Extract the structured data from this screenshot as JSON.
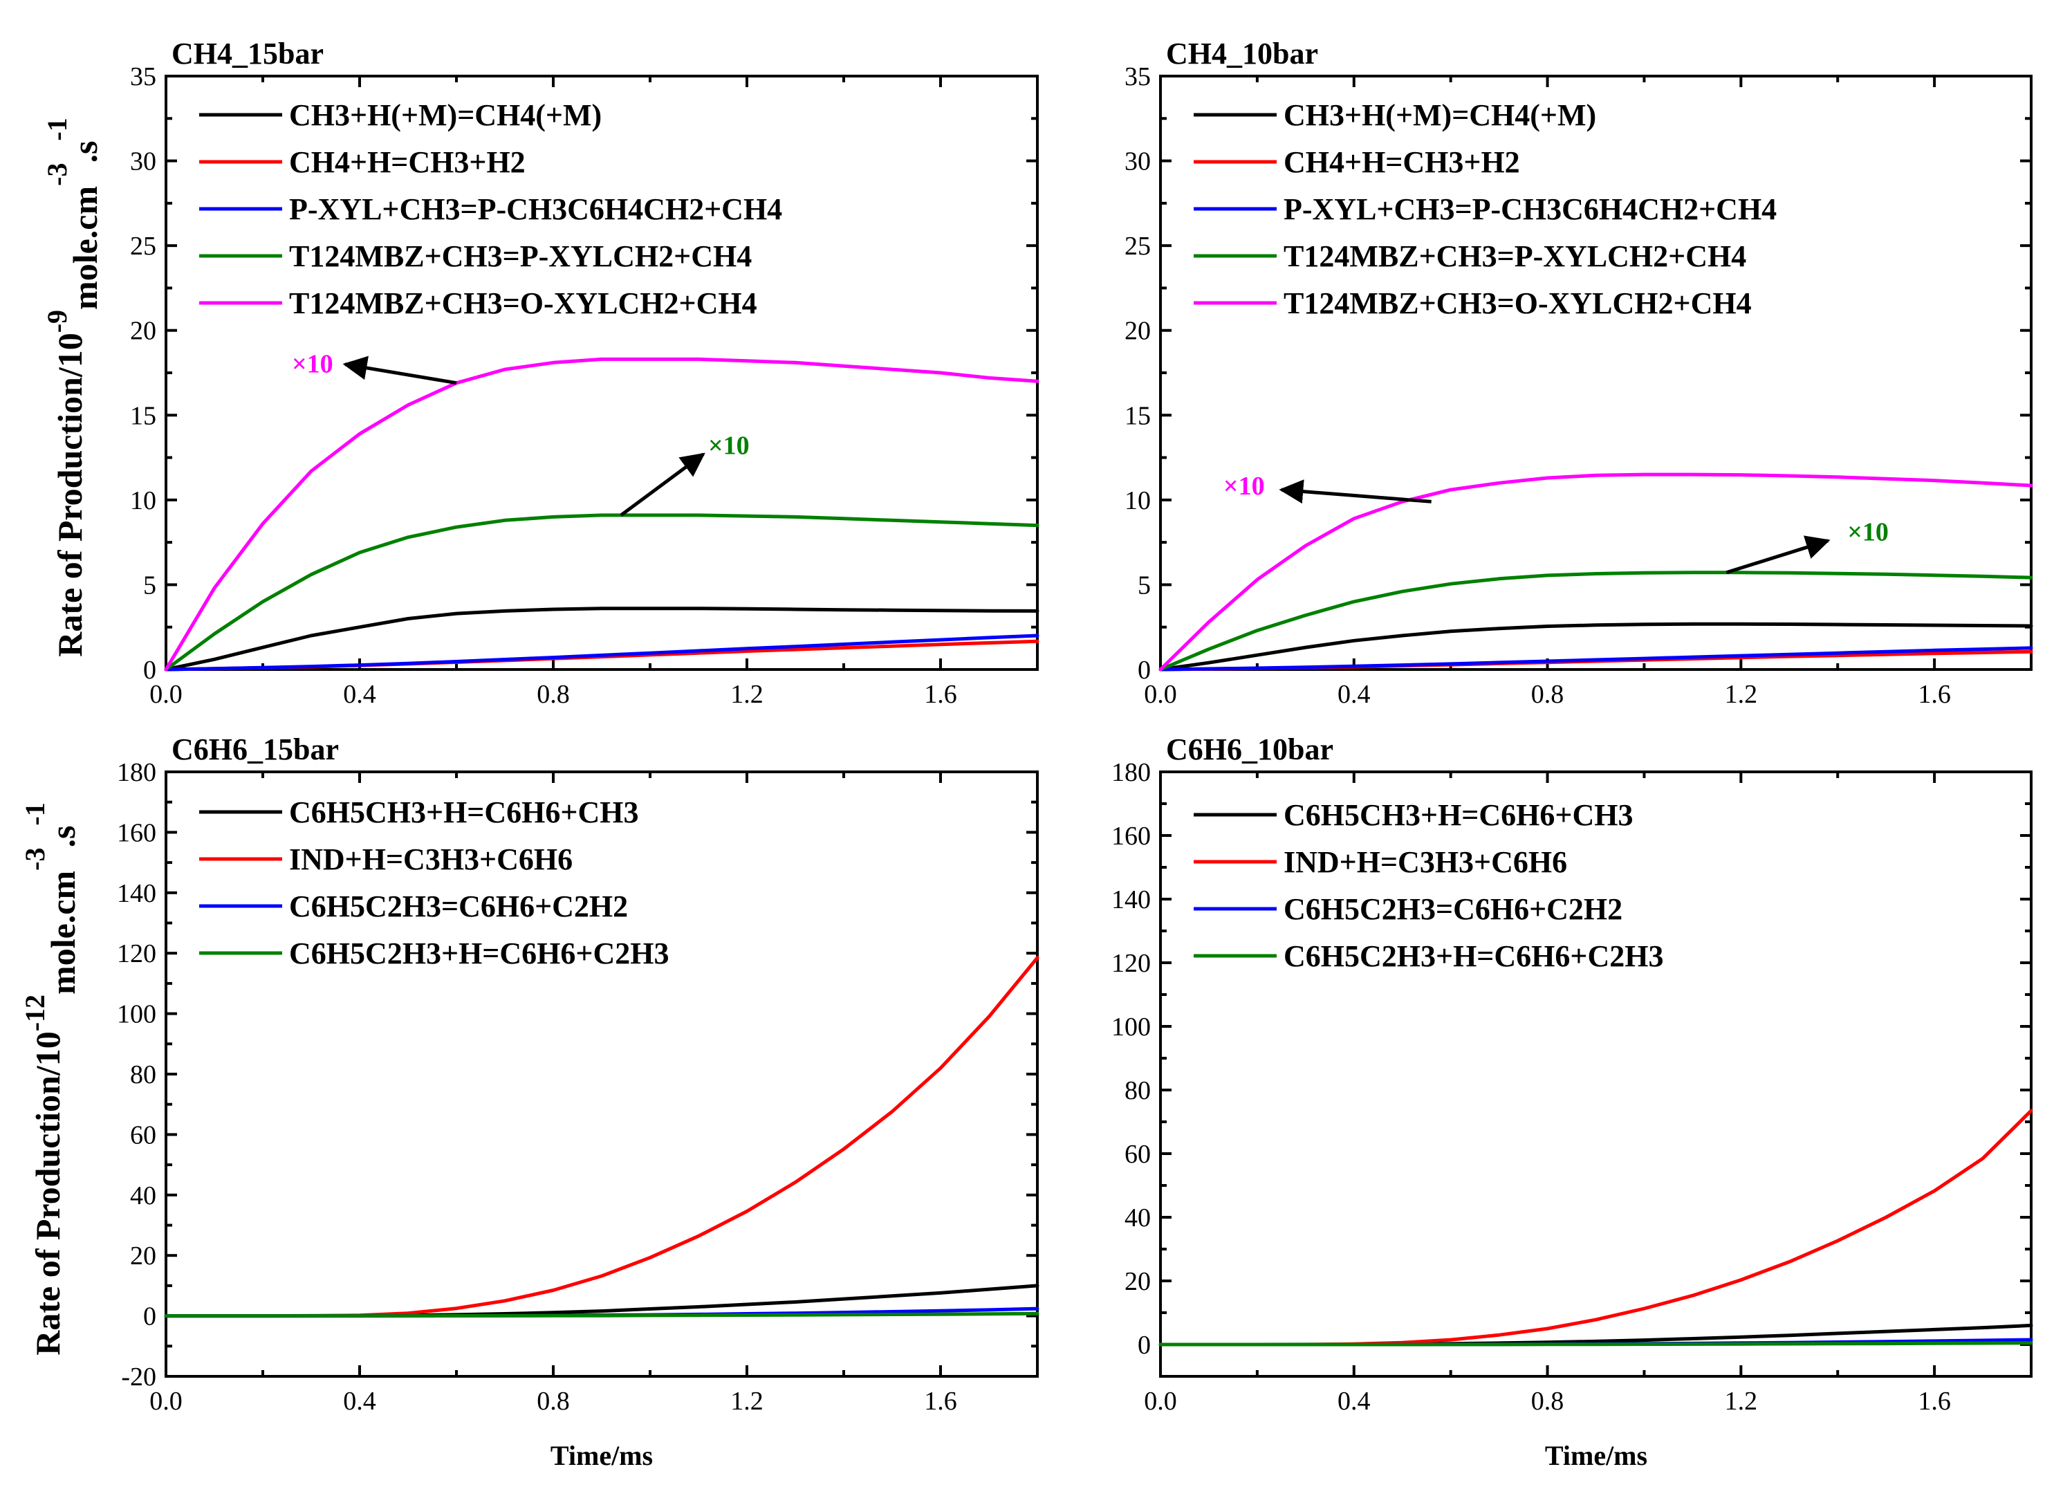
{
  "figure": {
    "ylabel_top": "Rate of Production/10^-9 mole.cm^-3.s^-1",
    "ylabel_bottom": "Rate of Production/10^-12 mole.cm^-3.s^-1",
    "xlabel": "Time/ms"
  },
  "chart_data": [
    {
      "type": "line",
      "title": "CH4_15bar",
      "xlabel": "",
      "ylabel": "Rate of Production/10^-9 mole.cm^-3.s^-1",
      "xlim": [
        0,
        1.8
      ],
      "ylim": [
        0,
        35
      ],
      "xticks": [
        0.0,
        0.4,
        0.8,
        1.2,
        1.6
      ],
      "yticks": [
        0,
        5,
        10,
        15,
        20,
        25,
        30,
        35
      ],
      "x": [
        0,
        0.1,
        0.2,
        0.3,
        0.4,
        0.5,
        0.6,
        0.7,
        0.8,
        0.9,
        1.0,
        1.1,
        1.2,
        1.3,
        1.4,
        1.5,
        1.6,
        1.7,
        1.8
      ],
      "series": [
        {
          "name": "CH3+H(+M)=CH4(+M)",
          "color": "#000000",
          "values": [
            0,
            0.6,
            1.3,
            2.0,
            2.5,
            3.0,
            3.3,
            3.45,
            3.55,
            3.6,
            3.6,
            3.6,
            3.58,
            3.55,
            3.52,
            3.5,
            3.48,
            3.46,
            3.45
          ]
        },
        {
          "name": "CH4+H=CH3+H2",
          "color": "#ff0000",
          "values": [
            0,
            0.05,
            0.1,
            0.16,
            0.24,
            0.33,
            0.43,
            0.53,
            0.64,
            0.75,
            0.86,
            0.97,
            1.08,
            1.18,
            1.28,
            1.38,
            1.48,
            1.57,
            1.66
          ]
        },
        {
          "name": "P-XYL+CH3=P-CH3C6H4CH2+CH4",
          "color": "#0000ff",
          "values": [
            0,
            0.05,
            0.11,
            0.18,
            0.26,
            0.36,
            0.47,
            0.59,
            0.71,
            0.84,
            0.97,
            1.1,
            1.23,
            1.36,
            1.49,
            1.62,
            1.75,
            1.88,
            2.0
          ]
        },
        {
          "name": "T124MBZ+CH3=P-XYLCH2+CH4",
          "color": "#008000",
          "values": [
            0,
            2.1,
            4.0,
            5.6,
            6.9,
            7.8,
            8.4,
            8.8,
            9.0,
            9.1,
            9.1,
            9.1,
            9.05,
            9.0,
            8.9,
            8.8,
            8.7,
            8.6,
            8.5
          ]
        },
        {
          "name": "T124MBZ+CH3=O-XYLCH2+CH4",
          "color": "#ff00ff",
          "values": [
            0,
            4.8,
            8.6,
            11.7,
            13.9,
            15.6,
            16.9,
            17.7,
            18.1,
            18.3,
            18.3,
            18.3,
            18.2,
            18.1,
            17.9,
            17.7,
            17.5,
            17.2,
            17.0
          ]
        }
      ],
      "annotations": [
        {
          "text": "×10",
          "color": "#ff00ff",
          "tail": [
            0.6,
            16.9
          ],
          "head": [
            0.37,
            18.0
          ],
          "label_at": [
            0.26,
            18.0
          ]
        },
        {
          "text": "×10",
          "color": "#008000",
          "tail": [
            0.94,
            9.1
          ],
          "head": [
            1.11,
            12.7
          ],
          "label_at": [
            1.12,
            13.2
          ]
        }
      ]
    },
    {
      "type": "line",
      "title": "CH4_10bar",
      "xlabel": "",
      "ylabel": "",
      "xlim": [
        0,
        1.8
      ],
      "ylim": [
        0,
        35
      ],
      "xticks": [
        0.0,
        0.4,
        0.8,
        1.2,
        1.6
      ],
      "yticks": [
        0,
        5,
        10,
        15,
        20,
        25,
        30,
        35
      ],
      "x": [
        0,
        0.1,
        0.2,
        0.3,
        0.4,
        0.5,
        0.6,
        0.7,
        0.8,
        0.9,
        1.0,
        1.1,
        1.2,
        1.3,
        1.4,
        1.5,
        1.6,
        1.7,
        1.8
      ],
      "series": [
        {
          "name": "CH3+H(+M)=CH4(+M)",
          "color": "#000000",
          "values": [
            0,
            0.4,
            0.85,
            1.3,
            1.7,
            2.0,
            2.25,
            2.42,
            2.55,
            2.62,
            2.66,
            2.68,
            2.68,
            2.67,
            2.65,
            2.63,
            2.61,
            2.59,
            2.57
          ]
        },
        {
          "name": "CH4+H=CH3+H2",
          "color": "#ff0000",
          "values": [
            0,
            0.03,
            0.07,
            0.11,
            0.16,
            0.22,
            0.28,
            0.35,
            0.42,
            0.49,
            0.56,
            0.63,
            0.7,
            0.77,
            0.83,
            0.89,
            0.95,
            1.0,
            1.05
          ]
        },
        {
          "name": "P-XYL+CH3=P-CH3C6H4CH2+CH4",
          "color": "#0000ff",
          "values": [
            0,
            0.04,
            0.08,
            0.13,
            0.19,
            0.26,
            0.33,
            0.41,
            0.49,
            0.57,
            0.65,
            0.73,
            0.81,
            0.89,
            0.97,
            1.05,
            1.13,
            1.2,
            1.27
          ]
        },
        {
          "name": "T124MBZ+CH3=P-XYLCH2+CH4",
          "color": "#008000",
          "values": [
            0,
            1.2,
            2.3,
            3.2,
            4.0,
            4.6,
            5.05,
            5.35,
            5.55,
            5.65,
            5.7,
            5.72,
            5.72,
            5.7,
            5.66,
            5.62,
            5.56,
            5.5,
            5.42
          ]
        },
        {
          "name": "T124MBZ+CH3=O-XYLCH2+CH4",
          "color": "#ff00ff",
          "values": [
            0,
            2.8,
            5.3,
            7.3,
            8.9,
            9.9,
            10.6,
            11.0,
            11.3,
            11.45,
            11.5,
            11.5,
            11.48,
            11.42,
            11.35,
            11.25,
            11.15,
            11.0,
            10.85
          ]
        }
      ],
      "annotations": [
        {
          "text": "×10",
          "color": "#ff00ff",
          "tail": [
            0.56,
            9.9
          ],
          "head": [
            0.25,
            10.6
          ],
          "label_at": [
            0.13,
            10.8
          ]
        },
        {
          "text": "×10",
          "color": "#008000",
          "tail": [
            1.17,
            5.72
          ],
          "head": [
            1.38,
            7.6
          ],
          "label_at": [
            1.42,
            8.1
          ]
        }
      ]
    },
    {
      "type": "line",
      "title": "C6H6_15bar",
      "xlabel": "Time/ms",
      "ylabel": "Rate of Production/10^-12 mole.cm^-3.s^-1",
      "xlim": [
        0,
        1.8
      ],
      "ylim": [
        -20,
        180
      ],
      "xticks": [
        0.0,
        0.4,
        0.8,
        1.2,
        1.6
      ],
      "yticks": [
        -20,
        0,
        20,
        40,
        60,
        80,
        100,
        120,
        140,
        160,
        180
      ],
      "x": [
        0,
        0.1,
        0.2,
        0.3,
        0.4,
        0.5,
        0.6,
        0.7,
        0.8,
        0.9,
        1.0,
        1.1,
        1.2,
        1.3,
        1.4,
        1.5,
        1.6,
        1.7,
        1.8
      ],
      "series": [
        {
          "name": "C6H5CH3+H=C6H6+CH3",
          "color": "#000000",
          "values": [
            0,
            0,
            0,
            0.05,
            0.1,
            0.2,
            0.4,
            0.7,
            1.1,
            1.6,
            2.3,
            3.0,
            3.8,
            4.6,
            5.6,
            6.6,
            7.6,
            8.8,
            10.0
          ]
        },
        {
          "name": "IND+H=C3H3+C6H6",
          "color": "#ff0000",
          "values": [
            0,
            0,
            0,
            0,
            0.2,
            0.9,
            2.5,
            5.0,
            8.5,
            13.2,
            19.3,
            26.4,
            34.6,
            44.2,
            55.2,
            67.6,
            82.0,
            99.0,
            118.5
          ]
        },
        {
          "name": "C6H5C2H3=C6H6+C2H2",
          "color": "#0000ff",
          "values": [
            0,
            0,
            0,
            0,
            0,
            0.02,
            0.05,
            0.1,
            0.15,
            0.25,
            0.35,
            0.5,
            0.7,
            0.9,
            1.15,
            1.4,
            1.7,
            2.0,
            2.4
          ]
        },
        {
          "name": "C6H5C2H3+H=C6H6+C2H3",
          "color": "#008000",
          "values": [
            0,
            0,
            0,
            0,
            0,
            0.01,
            0.02,
            0.04,
            0.07,
            0.1,
            0.15,
            0.2,
            0.26,
            0.33,
            0.4,
            0.48,
            0.56,
            0.65,
            0.75
          ]
        }
      ],
      "annotations": []
    },
    {
      "type": "line",
      "title": "C6H6_10bar",
      "xlabel": "Time/ms",
      "ylabel": "",
      "xlim": [
        0,
        1.8
      ],
      "ylim": [
        -10,
        180
      ],
      "xticks": [
        0.0,
        0.4,
        0.8,
        1.2,
        1.6
      ],
      "yticks": [
        0,
        20,
        40,
        60,
        80,
        100,
        120,
        140,
        160,
        180
      ],
      "x": [
        0,
        0.1,
        0.2,
        0.3,
        0.4,
        0.5,
        0.6,
        0.7,
        0.8,
        0.9,
        1.0,
        1.1,
        1.2,
        1.3,
        1.4,
        1.5,
        1.6,
        1.7,
        1.8
      ],
      "series": [
        {
          "name": "C6H5CH3+H=C6H6+CH3",
          "color": "#000000",
          "values": [
            0,
            0,
            0,
            0.03,
            0.06,
            0.12,
            0.25,
            0.45,
            0.7,
            1.0,
            1.4,
            1.85,
            2.35,
            2.9,
            3.5,
            4.1,
            4.7,
            5.3,
            6.0
          ]
        },
        {
          "name": "IND+H=C3H3+C6H6",
          "color": "#ff0000",
          "values": [
            0,
            0,
            0,
            0,
            0.15,
            0.6,
            1.5,
            3.0,
            5.0,
            7.8,
            11.3,
            15.4,
            20.3,
            26.0,
            32.6,
            40.0,
            48.3,
            58.5,
            73.5
          ]
        },
        {
          "name": "C6H5C2H3=C6H6+C2H2",
          "color": "#0000ff",
          "values": [
            0,
            0,
            0,
            0,
            0,
            0.02,
            0.04,
            0.07,
            0.11,
            0.17,
            0.25,
            0.35,
            0.47,
            0.6,
            0.75,
            0.92,
            1.1,
            1.3,
            1.5
          ]
        },
        {
          "name": "C6H5C2H3+H=C6H6+C2H3",
          "color": "#008000",
          "values": [
            0,
            0,
            0,
            0,
            0,
            0.01,
            0.02,
            0.03,
            0.05,
            0.07,
            0.1,
            0.13,
            0.17,
            0.21,
            0.26,
            0.31,
            0.37,
            0.43,
            0.5
          ]
        }
      ],
      "annotations": []
    }
  ]
}
